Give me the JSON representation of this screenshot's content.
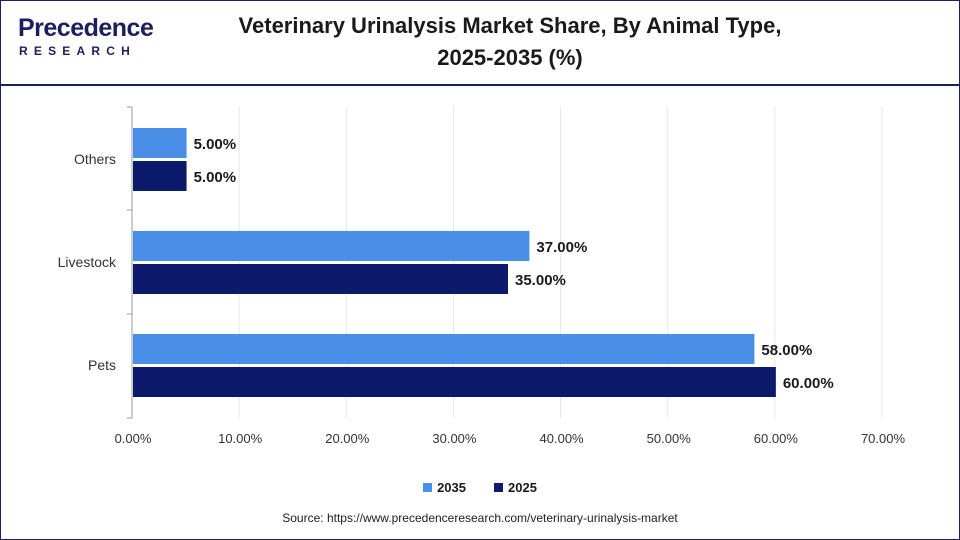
{
  "brand": {
    "name": "Precedence",
    "sub": "RESEARCH"
  },
  "title_line1": "Veterinary Urinalysis Market Share, By Animal Type,",
  "title_line2": "2025-2035 (%)",
  "source": "Source: https://www.precedenceresearch.com/veterinary-urinalysis-market",
  "colors": {
    "series_2035": "#4a8fe7",
    "series_2025": "#0c1a6b",
    "brand": "#1b1f5e"
  },
  "chart_data": {
    "type": "bar",
    "orientation": "horizontal",
    "categories": [
      "Others",
      "Livestock",
      "Pets"
    ],
    "series": [
      {
        "name": "2035",
        "values": [
          5.0,
          37.0,
          58.0
        ],
        "labels": [
          "5.00%",
          "37.00%",
          "58.00%"
        ]
      },
      {
        "name": "2025",
        "values": [
          5.0,
          35.0,
          60.0
        ],
        "labels": [
          "5.00%",
          "35.00%",
          "60.00%"
        ]
      }
    ],
    "xlim": [
      0,
      70
    ],
    "xticks": [
      "0.00%",
      "10.00%",
      "20.00%",
      "30.00%",
      "40.00%",
      "50.00%",
      "60.00%",
      "70.00%"
    ],
    "grid": true,
    "legend": "bottom"
  }
}
